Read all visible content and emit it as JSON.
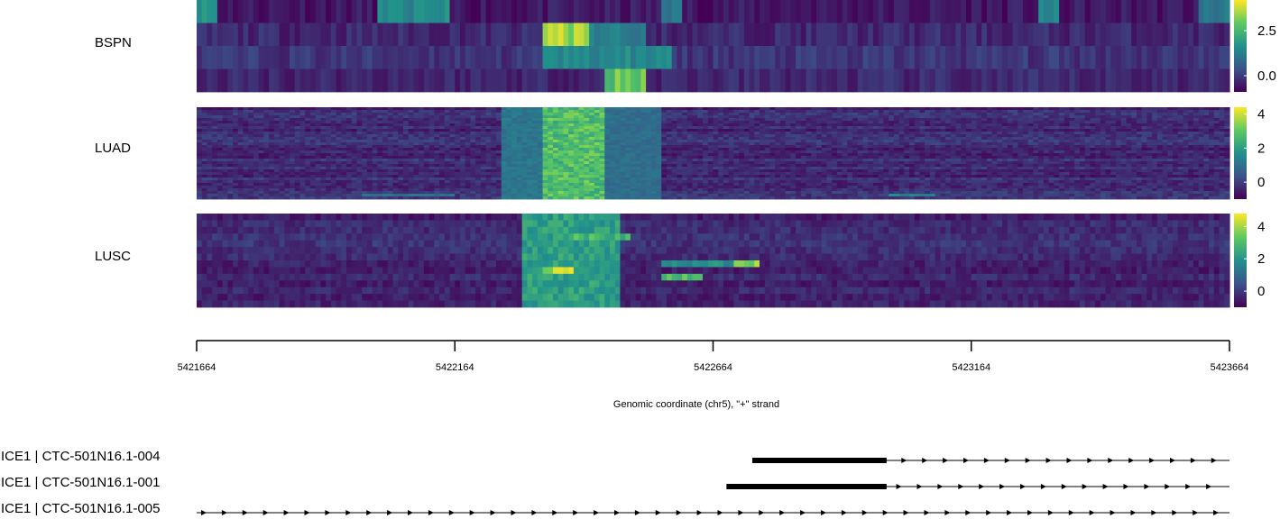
{
  "chart_data": {
    "type": "heatmap",
    "xlabel": "Genomic coordinate (chr5), \"+\" strand",
    "xlim": [
      5421664,
      5423664
    ],
    "x_ticks": [
      "5421664",
      "5422164",
      "5422664",
      "5423164",
      "5423664"
    ],
    "colormap": [
      "#440154",
      "#3b528b",
      "#21918c",
      "#5ec962",
      "#fde725"
    ],
    "panels": [
      {
        "name": "BSPN",
        "rows": 4,
        "colorbar_ticks": [
          "2.5",
          "0.0"
        ],
        "colorbar_tick_values": [
          2.5,
          0.0
        ],
        "value_range": [
          -0.9,
          4.2
        ],
        "hotspots": [
          {
            "row": 0,
            "start": 5421664,
            "end": 5421700,
            "level": 1.8
          },
          {
            "row": 0,
            "start": 5422010,
            "end": 5422150,
            "level": 1.6
          },
          {
            "row": 0,
            "start": 5422560,
            "end": 5422600,
            "level": 1.2
          },
          {
            "row": 0,
            "start": 5423290,
            "end": 5423330,
            "level": 1.4
          },
          {
            "row": 0,
            "start": 5423600,
            "end": 5423664,
            "level": 1.2
          },
          {
            "row": 1,
            "start": 5422330,
            "end": 5422420,
            "level": 3.9
          },
          {
            "row": 1,
            "start": 5422420,
            "end": 5422530,
            "level": 1.4
          },
          {
            "row": 2,
            "start": 5422330,
            "end": 5422580,
            "level": 1.6
          },
          {
            "row": 3,
            "start": 5422450,
            "end": 5422530,
            "level": 3.2
          }
        ]
      },
      {
        "name": "LUAD",
        "rows": 34,
        "colorbar_ticks": [
          "4",
          "2",
          "0"
        ],
        "colorbar_tick_values": [
          4,
          2,
          0
        ],
        "value_range": [
          -1.0,
          4.4
        ],
        "hotspots": [
          {
            "row": "all",
            "start": 5422330,
            "end": 5422450,
            "level": 3.0
          },
          {
            "row": "all",
            "start": 5422250,
            "end": 5422330,
            "level": 1.2
          },
          {
            "row": "all",
            "start": 5422450,
            "end": 5422560,
            "level": 1.0
          },
          {
            "row": 32,
            "start": 5423000,
            "end": 5423090,
            "level": 1.6
          },
          {
            "row": 32,
            "start": 5421980,
            "end": 5422160,
            "level": 1.0
          }
        ]
      },
      {
        "name": "LUSC",
        "rows": 14,
        "colorbar_ticks": [
          "4",
          "2",
          "0"
        ],
        "colorbar_tick_values": [
          4,
          2,
          0
        ],
        "value_range": [
          -1.0,
          4.8
        ],
        "hotspots": [
          {
            "row": "all",
            "start": 5422290,
            "end": 5422480,
            "level": 2.4
          },
          {
            "row": 8,
            "start": 5422330,
            "end": 5422390,
            "level": 4.3
          },
          {
            "row": 7,
            "start": 5422700,
            "end": 5422750,
            "level": 4.2
          },
          {
            "row": 9,
            "start": 5422560,
            "end": 5422640,
            "level": 3.4
          },
          {
            "row": 7,
            "start": 5422560,
            "end": 5422700,
            "level": 2.0
          },
          {
            "row": 3,
            "start": 5422380,
            "end": 5422500,
            "level": 3.0
          }
        ]
      }
    ],
    "transcripts": [
      {
        "label": "ICE1 | CTC-501N16.1-004",
        "start": 5422740,
        "end": 5423664,
        "thick_start": 5422740,
        "thick_end": 5423000
      },
      {
        "label": "ICE1 | CTC-501N16.1-001",
        "start": 5422690,
        "end": 5423664,
        "thick_start": 5422690,
        "thick_end": 5423000
      },
      {
        "label": "ICE1 | CTC-501N16.1-005",
        "start": 5421664,
        "end": 5423664,
        "thick_start": null,
        "thick_end": null
      }
    ]
  }
}
